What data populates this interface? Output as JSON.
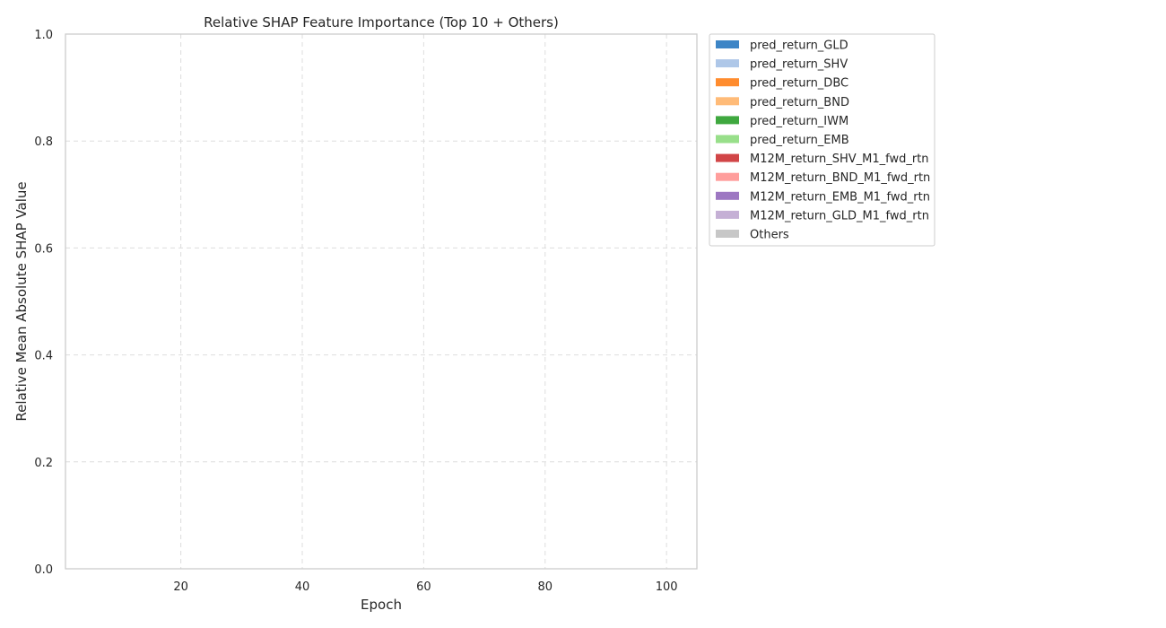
{
  "chart_data": {
    "type": "area",
    "title": "Relative SHAP Feature Importance (Top 10 + Others)",
    "xlabel": "Epoch",
    "ylabel": "Relative Mean Absolute SHAP Value",
    "xlim": [
      1,
      105
    ],
    "ylim": [
      0,
      1.0
    ],
    "x_ticks": [
      20,
      40,
      60,
      80,
      100
    ],
    "y_ticks": [
      0.0,
      0.2,
      0.4,
      0.6,
      0.8,
      1.0
    ],
    "x_tick_labels": [
      "20",
      "40",
      "60",
      "80",
      "100"
    ],
    "y_tick_labels": [
      "0.0",
      "0.2",
      "0.4",
      "0.6",
      "0.8",
      "1.0"
    ],
    "grid": true,
    "legend_position": "outside-upper-right",
    "series": [
      {
        "name": "pred_return_GLD",
        "color": "#3d85c6",
        "values": []
      },
      {
        "name": "pred_return_SHV",
        "color": "#aec7e8",
        "values": []
      },
      {
        "name": "pred_return_DBC",
        "color": "#ff8c2e",
        "values": []
      },
      {
        "name": "pred_return_BND",
        "color": "#ffbb78",
        "values": []
      },
      {
        "name": "pred_return_IWM",
        "color": "#3fa83f",
        "values": []
      },
      {
        "name": "pred_return_EMB",
        "color": "#98df8a",
        "values": []
      },
      {
        "name": "M12M_return_SHV_M1_fwd_rtn",
        "color": "#d14547",
        "values": []
      },
      {
        "name": "M12M_return_BND_M1_fwd_rtn",
        "color": "#ff9e9c",
        "values": []
      },
      {
        "name": "M12M_return_EMB_M1_fwd_rtn",
        "color": "#9d77c2",
        "values": []
      },
      {
        "name": "M12M_return_GLD_M1_fwd_rtn",
        "color": "#c5b0d5",
        "values": []
      },
      {
        "name": "Others",
        "color": "#c7c7c7",
        "values": []
      }
    ]
  }
}
